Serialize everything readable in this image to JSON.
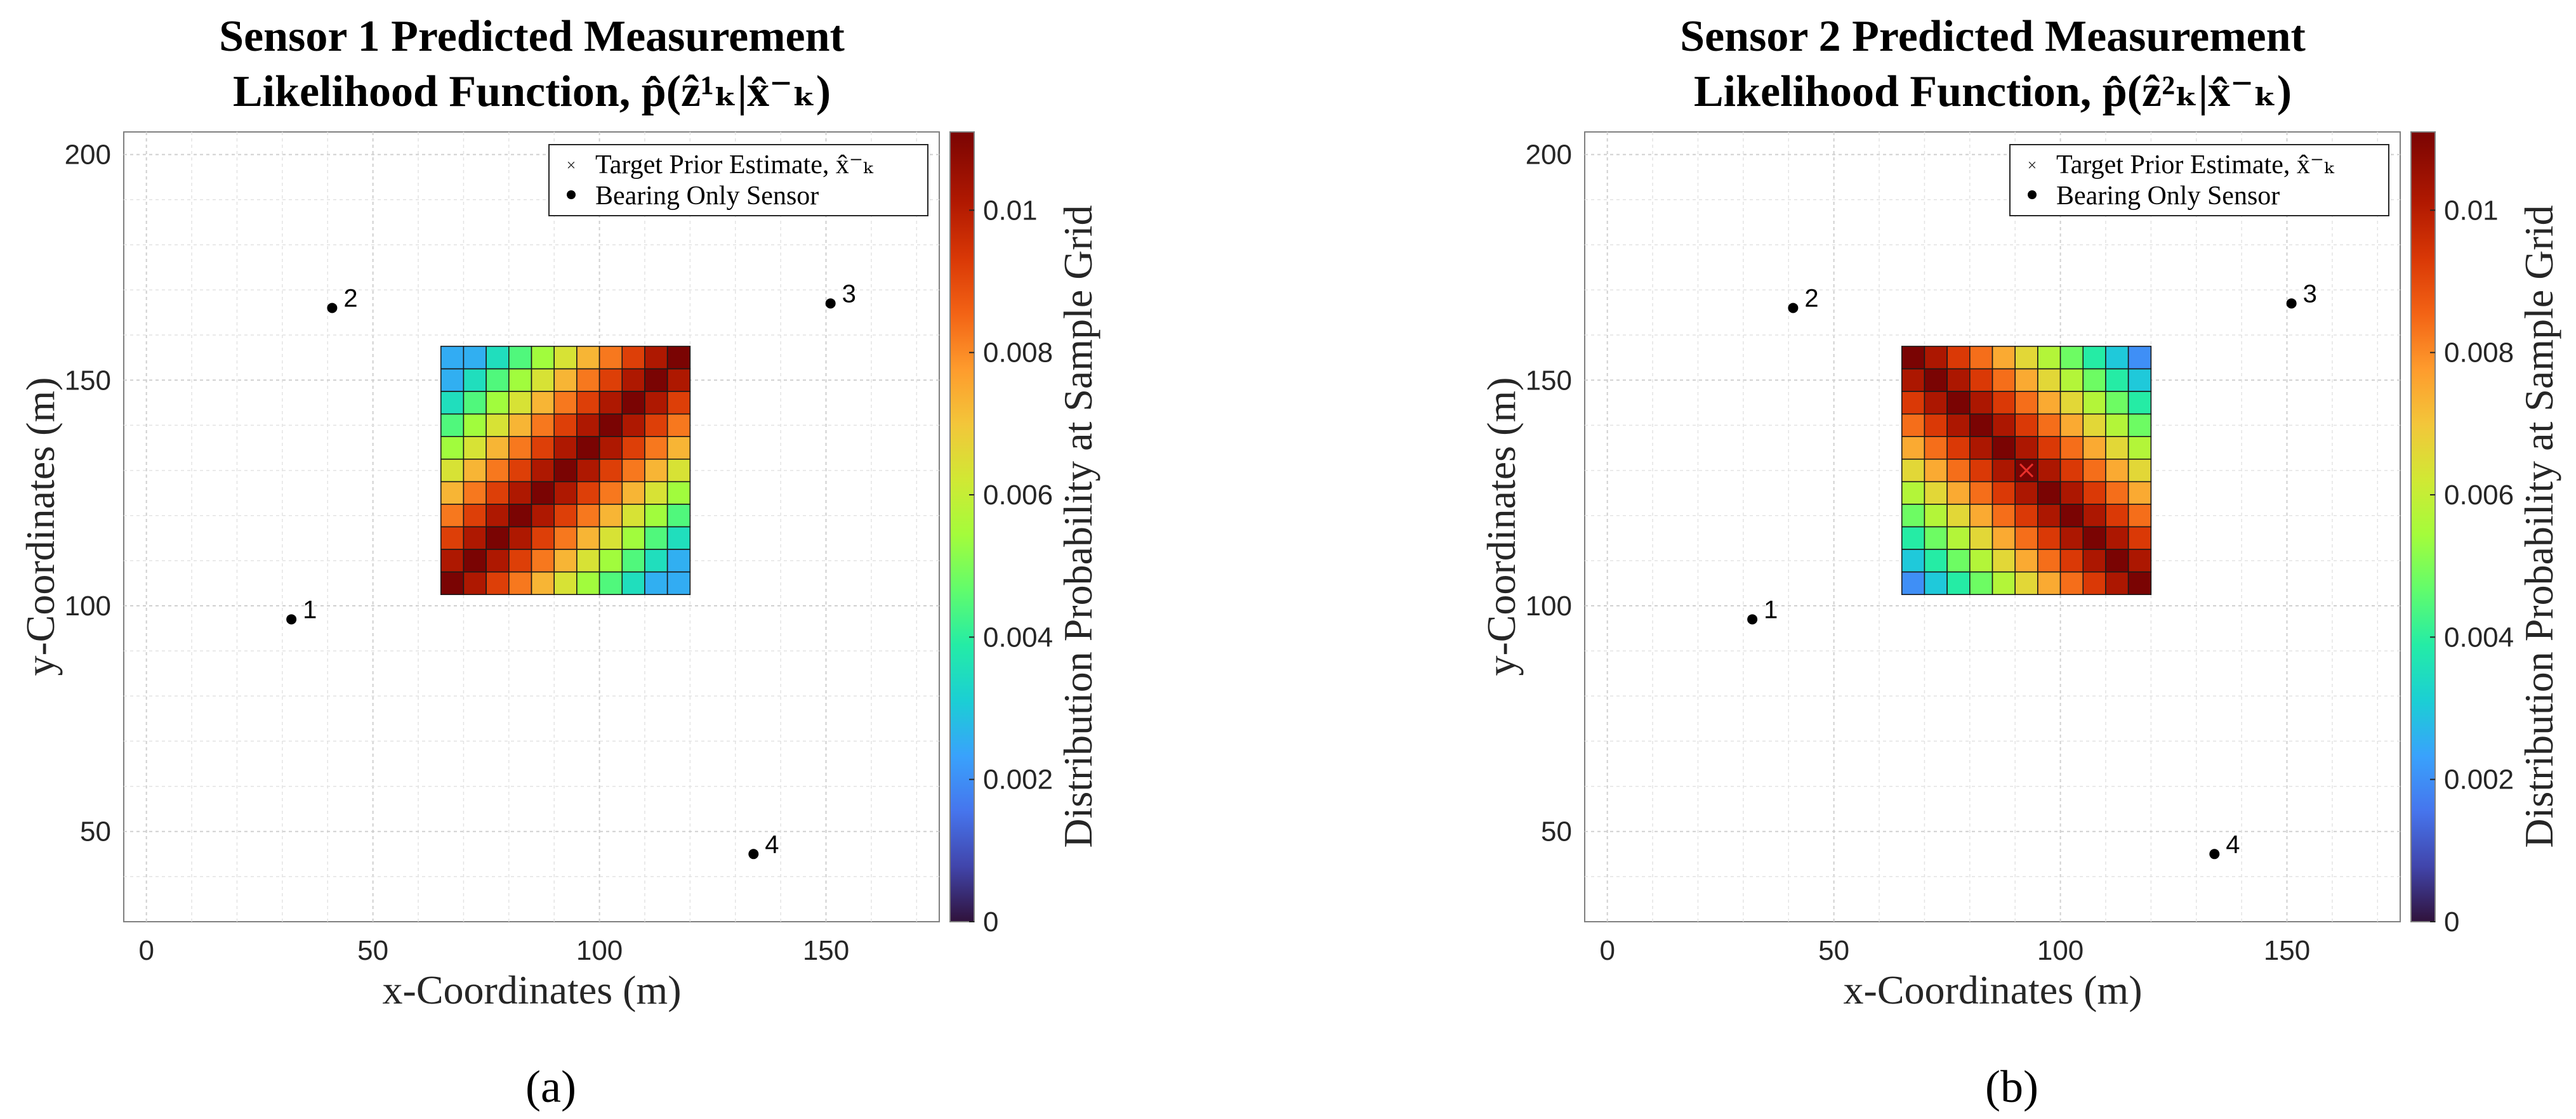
{
  "chart_data": [
    {
      "type": "heatmap",
      "panel": "a",
      "panel_label": "(a)",
      "title_line1": "Sensor 1 Predicted Measurement",
      "title_line2": "Likelihood Function, p̂(ẑ¹ₖ|x̂⁻ₖ)",
      "xlabel": "x-Coordinates (m)",
      "ylabel": "y-Coordinates (m)",
      "colorbar_label": "Distribution Probability at Sample Grid",
      "xlim": [
        -5,
        175
      ],
      "ylim": [
        30,
        205
      ],
      "xticks": [
        0,
        50,
        100,
        150
      ],
      "yticks": [
        50,
        100,
        150,
        200
      ],
      "clim": [
        0,
        0.0111
      ],
      "colorbar_ticks": [
        0,
        0.002,
        0.004,
        0.006,
        0.008,
        0.01
      ],
      "colorbar_tick_labels": [
        "0",
        "0.002",
        "0.004",
        "0.006",
        "0.008",
        "0.01"
      ],
      "grid": true,
      "legend": {
        "position": "top-right",
        "entries": [
          {
            "label": "Target Prior Estimate, x̂⁻ₖ",
            "marker": "x",
            "color": "#e8302b"
          },
          {
            "label": "Bearing Only Sensor",
            "marker": "dot",
            "color": "#000000"
          }
        ]
      },
      "heatmap": {
        "x_range": [
          65,
          120
        ],
        "y_range": [
          102.5,
          157.5
        ],
        "rows": 11,
        "cols": 11,
        "diagonal": "main",
        "peak": 0.0111,
        "corner_value": 0.0025,
        "falloff": 0.00095
      },
      "target_estimate": {
        "x": 92.5,
        "y": 130,
        "visible": false
      },
      "sensors": [
        {
          "id": "1",
          "x": 32,
          "y": 97
        },
        {
          "id": "2",
          "x": 41,
          "y": 166
        },
        {
          "id": "3",
          "x": 151,
          "y": 167
        },
        {
          "id": "4",
          "x": 134,
          "y": 45
        }
      ]
    },
    {
      "type": "heatmap",
      "panel": "b",
      "panel_label": "(b)",
      "title_line1": "Sensor 2 Predicted Measurement",
      "title_line2": "Likelihood Function, p̂(ẑ²ₖ|x̂⁻ₖ)",
      "xlabel": "x-Coordinates (m)",
      "ylabel": "y-Coordinates (m)",
      "colorbar_label": "Distribution Probability at Sample Grid",
      "xlim": [
        -5,
        175
      ],
      "ylim": [
        30,
        205
      ],
      "xticks": [
        0,
        50,
        100,
        150
      ],
      "yticks": [
        50,
        100,
        150,
        200
      ],
      "clim": [
        0,
        0.0111
      ],
      "colorbar_ticks": [
        0,
        0.002,
        0.004,
        0.006,
        0.008,
        0.01
      ],
      "colorbar_tick_labels": [
        "0",
        "0.002",
        "0.004",
        "0.006",
        "0.008",
        "0.01"
      ],
      "grid": true,
      "legend": {
        "position": "top-right",
        "entries": [
          {
            "label": "Target Prior Estimate, x̂⁻ₖ",
            "marker": "x",
            "color": "#e8302b"
          },
          {
            "label": "Bearing Only Sensor",
            "marker": "dot",
            "color": "#000000"
          }
        ]
      },
      "heatmap": {
        "x_range": [
          65,
          120
        ],
        "y_range": [
          102.5,
          157.5
        ],
        "rows": 11,
        "cols": 11,
        "diagonal": "anti",
        "peak": 0.0111,
        "corner_value": 0.002,
        "falloff": 0.0009
      },
      "target_estimate": {
        "x": 92.5,
        "y": 130,
        "visible": true
      },
      "sensors": [
        {
          "id": "1",
          "x": 32,
          "y": 97
        },
        {
          "id": "2",
          "x": 41,
          "y": 166
        },
        {
          "id": "3",
          "x": 151,
          "y": 167
        },
        {
          "id": "4",
          "x": 134,
          "y": 45
        }
      ]
    }
  ]
}
